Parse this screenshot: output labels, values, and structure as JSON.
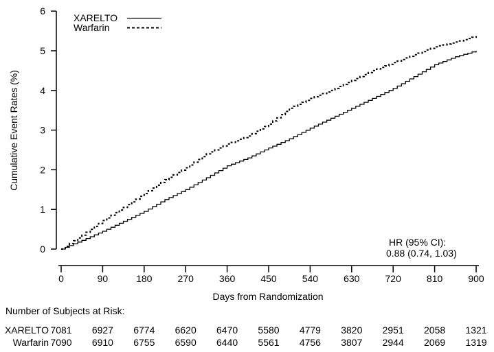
{
  "chart_data": {
    "type": "line",
    "subtype": "kaplan-meier-step",
    "title": "",
    "xlabel": "Days from Randomization",
    "ylabel": "Cumulative Event Rates (%)",
    "xlim": [
      0,
      900
    ],
    "ylim": [
      0,
      6
    ],
    "xticks": [
      0,
      90,
      180,
      270,
      360,
      450,
      540,
      630,
      720,
      810,
      900
    ],
    "yticks": [
      0,
      1,
      2,
      3,
      4,
      5,
      6
    ],
    "grid": false,
    "legend_position": "top-left-inside",
    "x": [
      0,
      45,
      90,
      135,
      180,
      225,
      270,
      315,
      360,
      405,
      450,
      495,
      540,
      585,
      630,
      675,
      720,
      765,
      810,
      855,
      900
    ],
    "series": [
      {
        "name": "XARELTO",
        "line_style": "solid",
        "color": "#000000",
        "values": [
          0,
          0.22,
          0.45,
          0.7,
          0.95,
          1.25,
          1.5,
          1.8,
          2.1,
          2.3,
          2.55,
          2.78,
          3.05,
          3.3,
          3.55,
          3.8,
          4.05,
          4.35,
          4.65,
          4.85,
          5.0
        ]
      },
      {
        "name": "Warfarin",
        "line_style": "dashed",
        "color": "#000000",
        "values": [
          0,
          0.35,
          0.72,
          1.05,
          1.4,
          1.75,
          2.05,
          2.4,
          2.65,
          2.85,
          3.15,
          3.55,
          3.8,
          4.0,
          4.25,
          4.5,
          4.7,
          4.9,
          5.1,
          5.22,
          5.37
        ]
      }
    ],
    "annotation_lines": [
      "HR (95% CI):",
      "0.88 (0.74, 1.03)"
    ],
    "at_risk_table": {
      "title": "Number of Subjects at Risk:",
      "rows": [
        {
          "label": "XARELTO",
          "counts": [
            7081,
            6927,
            6774,
            6620,
            6470,
            5580,
            4779,
            3820,
            2951,
            2058,
            1321
          ]
        },
        {
          "label": "Warfarin",
          "counts": [
            7090,
            6910,
            6755,
            6590,
            6440,
            5561,
            4756,
            3807,
            2944,
            2069,
            1319
          ]
        }
      ]
    }
  }
}
